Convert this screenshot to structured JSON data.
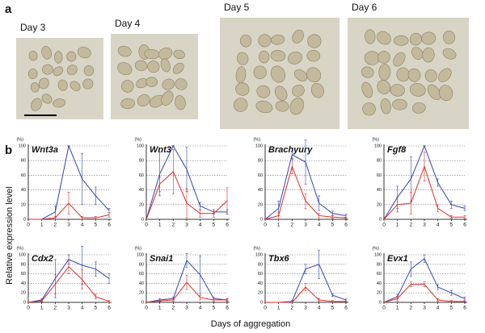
{
  "panel_a": {
    "label": "a",
    "images": [
      {
        "label": "Day 3"
      },
      {
        "label": "Day 4"
      },
      {
        "label": "Day 5"
      },
      {
        "label": "Day 6"
      }
    ]
  },
  "panel_b": {
    "label": "b",
    "y_axis_label": "Relative expression level",
    "x_axis_label": "Days of aggregation"
  },
  "chart_data": [
    {
      "type": "line",
      "title": "Wnt3a",
      "ylabel": "(%)",
      "x": [
        0,
        1,
        2,
        3,
        4,
        5,
        6
      ],
      "xlim": [
        0,
        6
      ],
      "xticks": [
        0,
        1,
        2,
        3,
        4,
        5,
        6
      ],
      "ylim": [
        0,
        100
      ],
      "yticks": [
        0,
        20,
        40,
        60,
        80,
        100
      ],
      "grid": true,
      "series": [
        {
          "color": "#3345b0",
          "values": [
            0,
            0,
            10,
            100,
            55,
            32,
            12
          ],
          "errors": [
            0,
            0,
            8,
            0,
            35,
            12,
            3
          ]
        },
        {
          "color": "#e02a2a",
          "values": [
            0,
            0,
            2,
            22,
            2,
            2,
            6
          ],
          "errors": [
            0,
            0,
            2,
            15,
            2,
            2,
            3
          ]
        }
      ]
    },
    {
      "type": "line",
      "title": "Wnt3",
      "ylabel": "(%)",
      "x": [
        0,
        1,
        2,
        3,
        4,
        5,
        6
      ],
      "xlim": [
        0,
        6
      ],
      "xticks": [
        0,
        1,
        2,
        3,
        4,
        5,
        6
      ],
      "ylim": [
        0,
        100
      ],
      "yticks": [
        0,
        20,
        40,
        60,
        80,
        100
      ],
      "grid": true,
      "series": [
        {
          "color": "#3345b0",
          "values": [
            0,
            62,
            100,
            68,
            18,
            10,
            10
          ],
          "errors": [
            0,
            30,
            0,
            30,
            5,
            3,
            3
          ]
        },
        {
          "color": "#e02a2a",
          "values": [
            0,
            48,
            65,
            22,
            8,
            8,
            25
          ],
          "errors": [
            0,
            10,
            30,
            20,
            5,
            5,
            18
          ]
        }
      ]
    },
    {
      "type": "line",
      "title": "Brachyury",
      "ylabel": "(%)",
      "x": [
        0,
        1,
        2,
        3,
        4,
        5,
        6
      ],
      "xlim": [
        0,
        6
      ],
      "xticks": [
        0,
        1,
        2,
        3,
        4,
        5,
        6
      ],
      "ylim": [
        0,
        100
      ],
      "yticks": [
        0,
        20,
        40,
        60,
        80,
        100
      ],
      "grid": true,
      "series": [
        {
          "color": "#3345b0",
          "values": [
            0,
            15,
            88,
            78,
            22,
            8,
            5
          ],
          "errors": [
            0,
            10,
            5,
            30,
            10,
            3,
            2
          ]
        },
        {
          "color": "#e02a2a",
          "values": [
            0,
            5,
            72,
            25,
            5,
            3,
            2
          ],
          "errors": [
            0,
            5,
            10,
            10,
            3,
            2,
            1
          ]
        }
      ]
    },
    {
      "type": "line",
      "title": "Fgf8",
      "ylabel": "(%)",
      "x": [
        0,
        1,
        2,
        3,
        4,
        5,
        6
      ],
      "xlim": [
        0,
        6
      ],
      "xticks": [
        0,
        1,
        2,
        3,
        4,
        5,
        6
      ],
      "ylim": [
        0,
        100
      ],
      "yticks": [
        0,
        20,
        40,
        60,
        80,
        100
      ],
      "grid": true,
      "series": [
        {
          "color": "#3345b0",
          "values": [
            0,
            30,
            55,
            100,
            50,
            20,
            15
          ],
          "errors": [
            0,
            15,
            30,
            0,
            5,
            5,
            3
          ]
        },
        {
          "color": "#e02a2a",
          "values": [
            0,
            20,
            22,
            72,
            15,
            3,
            3
          ],
          "errors": [
            0,
            10,
            15,
            20,
            5,
            2,
            2
          ]
        }
      ]
    },
    {
      "type": "line",
      "title": "Cdx2",
      "ylabel": "(%)",
      "x": [
        0,
        1,
        2,
        3,
        4,
        5,
        6
      ],
      "xlim": [
        0,
        6
      ],
      "xticks": [
        0,
        1,
        2,
        3,
        4,
        5,
        6
      ],
      "ylim": [
        0,
        100
      ],
      "yticks": [
        0,
        20,
        40,
        60,
        80,
        100
      ],
      "grid": true,
      "series": [
        {
          "color": "#3345b0",
          "values": [
            0,
            5,
            50,
            90,
            78,
            70,
            50
          ],
          "errors": [
            0,
            3,
            40,
            10,
            40,
            15,
            10
          ]
        },
        {
          "color": "#e02a2a",
          "values": [
            0,
            3,
            38,
            75,
            48,
            12,
            2
          ],
          "errors": [
            0,
            2,
            20,
            15,
            20,
            5,
            2
          ]
        }
      ]
    },
    {
      "type": "line",
      "title": "Snai1",
      "ylabel": "(%)",
      "x": [
        0,
        1,
        2,
        3,
        4,
        5,
        6
      ],
      "xlim": [
        0,
        6
      ],
      "xticks": [
        0,
        1,
        2,
        3,
        4,
        5,
        6
      ],
      "ylim": [
        0,
        100
      ],
      "yticks": [
        0,
        20,
        40,
        60,
        80,
        100
      ],
      "grid": true,
      "series": [
        {
          "color": "#3345b0",
          "values": [
            0,
            5,
            8,
            88,
            58,
            8,
            5
          ],
          "errors": [
            0,
            3,
            3,
            15,
            40,
            3,
            2
          ]
        },
        {
          "color": "#e02a2a",
          "values": [
            0,
            3,
            5,
            42,
            10,
            5,
            5
          ],
          "errors": [
            0,
            2,
            3,
            15,
            5,
            3,
            3
          ]
        }
      ]
    },
    {
      "type": "line",
      "title": "Tbx6",
      "ylabel": "(%)",
      "x": [
        0,
        1,
        2,
        3,
        4,
        5,
        6
      ],
      "xlim": [
        0,
        6
      ],
      "xticks": [
        0,
        1,
        2,
        3,
        4,
        5,
        6
      ],
      "ylim": [
        0,
        100
      ],
      "yticks": [
        0,
        20,
        40,
        60,
        80,
        100
      ],
      "grid": true,
      "series": [
        {
          "color": "#3345b0",
          "values": [
            0,
            0,
            2,
            70,
            80,
            15,
            5
          ],
          "errors": [
            0,
            0,
            2,
            10,
            30,
            3,
            2
          ]
        },
        {
          "color": "#e02a2a",
          "values": [
            0,
            0,
            0,
            32,
            5,
            2,
            2
          ],
          "errors": [
            0,
            0,
            0,
            8,
            3,
            2,
            1
          ]
        }
      ]
    },
    {
      "type": "line",
      "title": "Evx1",
      "ylabel": "(%)",
      "x": [
        0,
        1,
        2,
        3,
        4,
        5,
        6
      ],
      "xlim": [
        0,
        6
      ],
      "xticks": [
        0,
        1,
        2,
        3,
        4,
        5,
        6
      ],
      "ylim": [
        0,
        100
      ],
      "yticks": [
        0,
        20,
        40,
        60,
        80,
        100
      ],
      "grid": true,
      "series": [
        {
          "color": "#3345b0",
          "values": [
            0,
            12,
            70,
            92,
            32,
            20,
            8
          ],
          "errors": [
            0,
            5,
            15,
            8,
            5,
            5,
            3
          ]
        },
        {
          "color": "#e02a2a",
          "values": [
            0,
            8,
            38,
            38,
            5,
            2,
            2
          ],
          "errors": [
            0,
            5,
            5,
            5,
            3,
            2,
            1
          ]
        }
      ]
    }
  ]
}
